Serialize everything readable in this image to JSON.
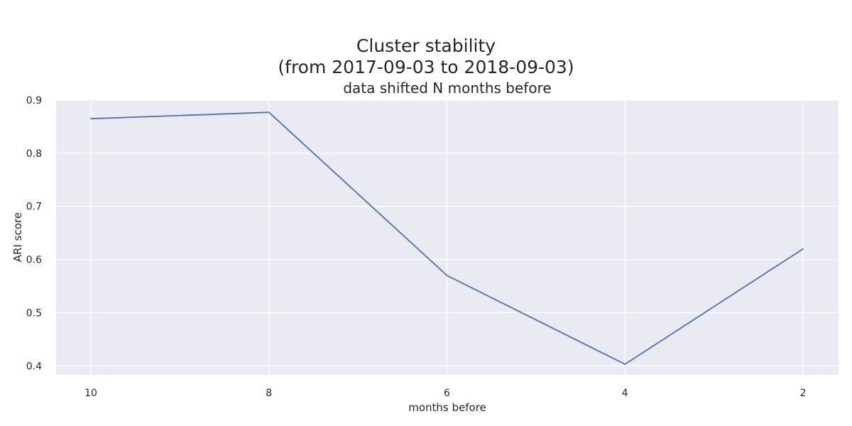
{
  "chart_data": {
    "type": "line",
    "title": [
      "Cluster stability",
      "(from 2017-09-03 to 2018-09-03)"
    ],
    "subtitle": "data shifted N months before",
    "xlabel": "months before",
    "ylabel": "ARI score",
    "x_ticks": [
      "10",
      "8",
      "6",
      "4",
      "2"
    ],
    "y_ticks": [
      "0.4",
      "0.5",
      "0.6",
      "0.7",
      "0.8",
      "0.9"
    ],
    "ylim": [
      0.383,
      0.9
    ],
    "grid": true,
    "x": [
      10,
      8,
      6,
      4,
      2
    ],
    "series": [
      {
        "values": [
          0.865,
          0.877,
          0.57,
          0.403,
          0.62
        ],
        "color": "#4c72b0"
      }
    ],
    "colors": {
      "plot_background": "#eaeaf2",
      "grid": "#ffffff",
      "line": "#4c72b0"
    }
  }
}
